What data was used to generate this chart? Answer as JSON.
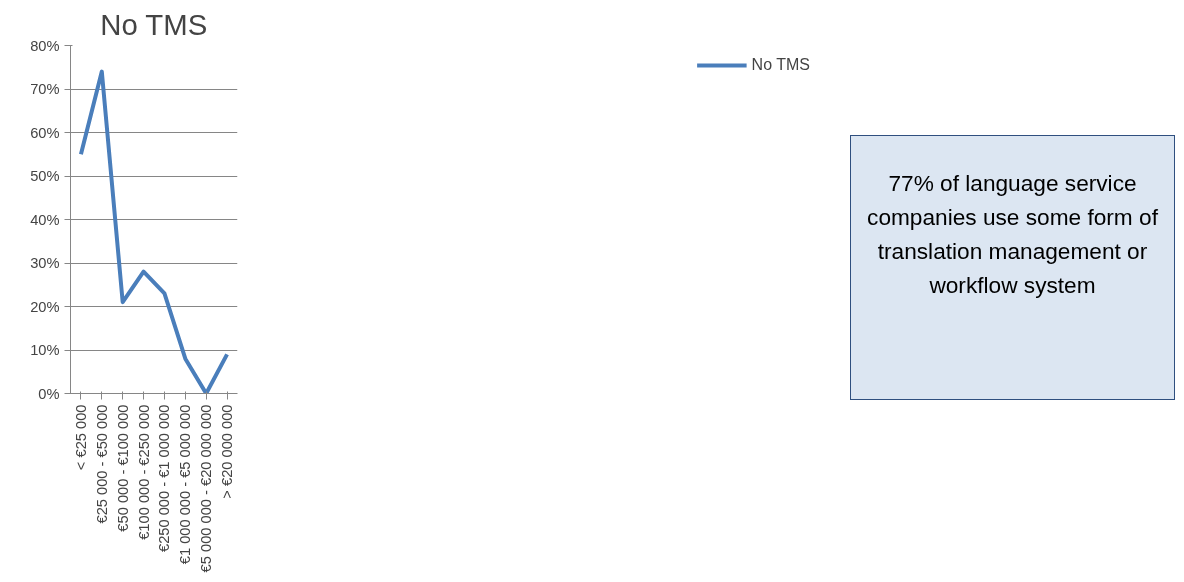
{
  "chart_data": {
    "type": "line",
    "title": "No TMS",
    "categories": [
      "< €25 000",
      "€25 000 - €50 000",
      "€50 000 - €100 000",
      "€100 000 - €250 000",
      "€250 000 - €1 000 000",
      "€1 000 000 - €5 000 000",
      "€5 000 000 - €20 000 000",
      "> €20 000 000"
    ],
    "series": [
      {
        "name": "No TMS",
        "color": "#4a7ebb",
        "values": [
          55,
          74,
          21,
          28,
          23,
          8,
          0,
          9
        ]
      }
    ],
    "ylim": [
      0,
      80
    ],
    "yticks": [
      {
        "value": 0,
        "label": "0%"
      },
      {
        "value": 10,
        "label": "10%"
      },
      {
        "value": 20,
        "label": "20%"
      },
      {
        "value": 30,
        "label": "30%"
      },
      {
        "value": 40,
        "label": "40%"
      },
      {
        "value": 50,
        "label": "50%"
      },
      {
        "value": 60,
        "label": "60%"
      },
      {
        "value": 70,
        "label": "70%"
      },
      {
        "value": 80,
        "label": "80%"
      }
    ],
    "grid": "y",
    "legend": "right",
    "marker": "none",
    "line_style": "solid",
    "annotations": [
      "77% of language service companies use some form of translation management or workflow system"
    ]
  }
}
